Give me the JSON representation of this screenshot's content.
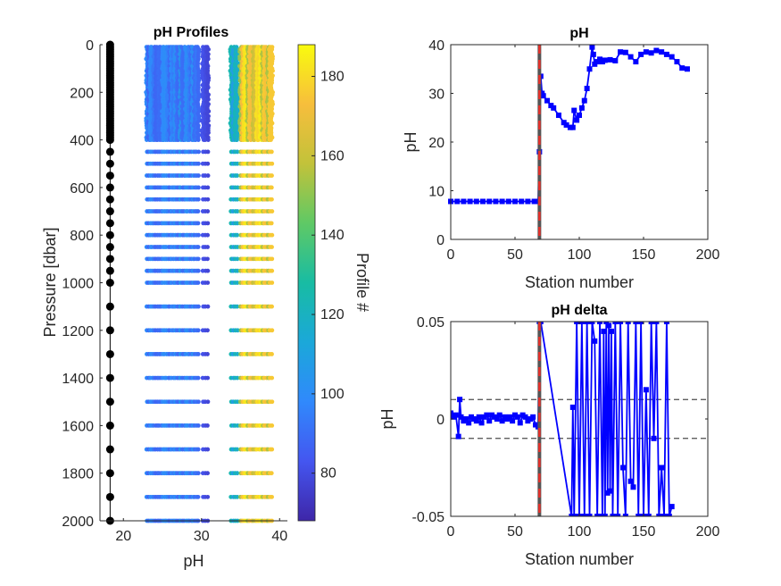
{
  "colors": {
    "series": "#0000ff",
    "marker_black": "#000000",
    "vline_gray": "#555555",
    "vline_red": "#e8302a",
    "colormap": [
      "#3e26a8",
      "#4456f0",
      "#3089fc",
      "#1ba8d9",
      "#18bca3",
      "#5fc965",
      "#c2c23a",
      "#f7be3c",
      "#f9fb0e"
    ]
  },
  "chart_data": [
    {
      "type": "scatter",
      "title": "pH Profiles",
      "xlabel": "pH",
      "ylabel": "Pressure [dbar]",
      "xlim": [
        17,
        41
      ],
      "ylim": [
        2000,
        0
      ],
      "xticks": [
        20,
        30,
        40
      ],
      "yticks": [
        0,
        200,
        400,
        600,
        800,
        1000,
        1200,
        1400,
        1600,
        1800,
        2000
      ],
      "colorbar": {
        "label": "Profile #",
        "range": [
          68,
          188
        ],
        "ticks": [
          80,
          100,
          120,
          140,
          160,
          180
        ]
      },
      "reference_profile": {
        "x": 18.3,
        "pressures": [
          0,
          10,
          20,
          30,
          40,
          50,
          60,
          70,
          80,
          90,
          100,
          110,
          120,
          130,
          140,
          150,
          160,
          170,
          180,
          190,
          200,
          210,
          220,
          230,
          240,
          250,
          260,
          270,
          280,
          290,
          300,
          310,
          320,
          330,
          340,
          350,
          360,
          370,
          380,
          390,
          400,
          450,
          500,
          550,
          600,
          650,
          700,
          750,
          800,
          850,
          900,
          950,
          1000,
          1100,
          1200,
          1300,
          1400,
          1500,
          1600,
          1700,
          1800,
          1900,
          2000
        ]
      },
      "profile_levels": [
        10,
        20,
        30,
        40,
        50,
        60,
        70,
        80,
        90,
        100,
        110,
        120,
        130,
        140,
        150,
        160,
        170,
        180,
        190,
        200,
        210,
        220,
        230,
        240,
        250,
        260,
        270,
        280,
        290,
        300,
        310,
        320,
        330,
        340,
        350,
        360,
        370,
        380,
        390,
        400,
        450,
        500,
        550,
        600,
        650,
        700,
        750,
        800,
        850,
        900,
        950,
        1000,
        1100,
        1200,
        1300,
        1400,
        1500,
        1600,
        1700,
        1800,
        1900,
        2000
      ],
      "profile_groups": [
        {
          "x_range": [
            23.0,
            29.6
          ],
          "profile_range": [
            88,
            104
          ]
        },
        {
          "x_range": [
            30.2,
            30.8
          ],
          "profile_range": [
            76,
            84
          ]
        },
        {
          "x_range": [
            33.8,
            34.6
          ],
          "profile_range": [
            96,
            124
          ]
        },
        {
          "x_range": [
            35.0,
            39.0
          ],
          "profile_range": [
            150,
            186
          ]
        }
      ]
    },
    {
      "type": "line",
      "title": "pH",
      "xlabel": "Station number",
      "ylabel": "pH",
      "xlim": [
        0,
        200
      ],
      "ylim": [
        0,
        40
      ],
      "xticks": [
        0,
        50,
        100,
        150,
        200
      ],
      "yticks": [
        0,
        10,
        20,
        30,
        40
      ],
      "vline_x": 69,
      "series": [
        {
          "x": [
            0,
            5,
            10,
            15,
            20,
            25,
            30,
            35,
            40,
            45,
            50,
            55,
            60,
            65,
            68,
            69,
            70,
            71,
            72,
            75,
            78,
            80,
            84,
            88,
            90,
            93,
            95,
            96,
            98,
            100,
            102,
            104,
            106,
            108,
            110,
            111,
            112,
            114,
            116,
            118,
            120,
            124,
            128,
            132,
            136,
            140,
            144,
            148,
            152,
            156,
            160,
            164,
            168,
            172,
            176,
            180,
            184
          ],
          "y": [
            7.8,
            7.8,
            7.8,
            7.8,
            7.8,
            7.8,
            7.8,
            7.8,
            7.8,
            7.8,
            7.8,
            7.8,
            7.8,
            7.8,
            7.8,
            18,
            33.5,
            30,
            29.5,
            28.5,
            27.5,
            27,
            25.5,
            24,
            23.5,
            23,
            23,
            26.5,
            24.5,
            25.5,
            27,
            28.5,
            31,
            35,
            39.5,
            38,
            36,
            36.5,
            37,
            36.5,
            36.8,
            36.9,
            36.7,
            38.5,
            38.4,
            37.5,
            36.5,
            38,
            38.5,
            38.3,
            38.8,
            38.5,
            38,
            37.5,
            36.5,
            35.2,
            35
          ]
        }
      ]
    },
    {
      "type": "line",
      "title": "pH delta",
      "xlabel": "Station number",
      "ylabel": "pH",
      "xlim": [
        0,
        200
      ],
      "ylim": [
        -0.05,
        0.05
      ],
      "xticks": [
        0,
        50,
        100,
        150,
        200
      ],
      "yticks": [
        -0.05,
        0,
        0.05
      ],
      "yticklabels": [
        "-0.05",
        "0",
        "0.05"
      ],
      "hlines": [
        0.01,
        -0.01
      ],
      "vline_x": 69,
      "series": [
        {
          "x": [
            0,
            2,
            4,
            6,
            7,
            8,
            10,
            12,
            14,
            16,
            18,
            20,
            22,
            24,
            26,
            28,
            30,
            32,
            34,
            36,
            38,
            40,
            42,
            44,
            46,
            48,
            50,
            52,
            54,
            56,
            58,
            60,
            62,
            64,
            66,
            68,
            69,
            70,
            94,
            95,
            96,
            98,
            100,
            102,
            104,
            106,
            108,
            110,
            112,
            114,
            116,
            118,
            119,
            120,
            121,
            122,
            123,
            124,
            125,
            126,
            128,
            130,
            132,
            134,
            136,
            138,
            140,
            142,
            144,
            146,
            148,
            150,
            152,
            154,
            156,
            158,
            160,
            162,
            164,
            166,
            168,
            170,
            172
          ],
          "y": [
            0.003,
            0.001,
            0.002,
            -0.009,
            0.01,
            0.001,
            -0.001,
            0,
            -0.002,
            0.001,
            0,
            -0.001,
            0.001,
            -0.002,
            0.001,
            0.002,
            -0.001,
            0.002,
            0.001,
            0,
            0.002,
            -0.001,
            0.001,
            0,
            0.001,
            -0.001,
            0.002,
            0.001,
            -0.002,
            0.002,
            0.001,
            -0.001,
            0,
            0.001,
            -0.003,
            -0.004,
            0.05,
            0.05,
            -0.05,
            0.006,
            -0.05,
            0.05,
            -0.05,
            0.05,
            -0.05,
            0.05,
            -0.05,
            0.05,
            0.04,
            -0.05,
            0.05,
            -0.05,
            0.045,
            -0.05,
            0.05,
            -0.038,
            0.048,
            -0.037,
            0.045,
            -0.05,
            0.05,
            -0.05,
            0.05,
            -0.025,
            -0.05,
            0.05,
            -0.032,
            -0.035,
            0.05,
            -0.05,
            0.05,
            -0.05,
            0.015,
            -0.05,
            0.05,
            -0.01,
            0.05,
            -0.05,
            -0.025,
            -0.05,
            0.05,
            -0.05,
            -0.045
          ]
        }
      ]
    }
  ]
}
